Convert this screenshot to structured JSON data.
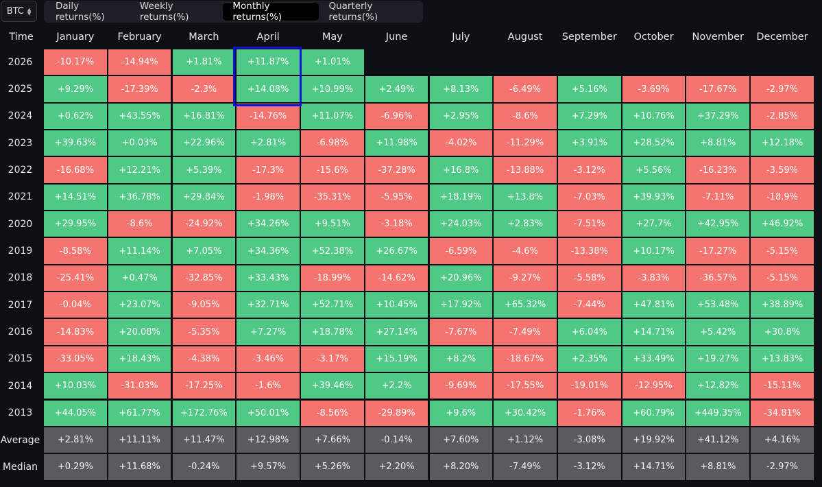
{
  "asset": "BTC",
  "tabs": [
    {
      "label": "Daily returns(%)",
      "active": false
    },
    {
      "label": "Weekly returns(%)",
      "active": false
    },
    {
      "label": "Monthly returns(%)",
      "active": true
    },
    {
      "label": "Quarterly returns(%)",
      "active": false
    }
  ],
  "table": {
    "corner": "Time",
    "months": [
      "January",
      "February",
      "March",
      "April",
      "May",
      "June",
      "July",
      "August",
      "September",
      "October",
      "November",
      "December"
    ],
    "rows": [
      {
        "label": "2026",
        "values": [
          "-10.17%",
          "-14.94%",
          "+1.81%",
          "+11.87%",
          "+1.01%",
          "",
          "",
          "",
          "",
          "",
          "",
          ""
        ]
      },
      {
        "label": "2025",
        "values": [
          "+9.29%",
          "-17.39%",
          "-2.3%",
          "+14.08%",
          "+10.99%",
          "+2.49%",
          "+8.13%",
          "-6.49%",
          "+5.16%",
          "-3.69%",
          "-17.67%",
          "-2.97%"
        ]
      },
      {
        "label": "2024",
        "values": [
          "+0.62%",
          "+43.55%",
          "+16.81%",
          "-14.76%",
          "+11.07%",
          "-6.96%",
          "+2.95%",
          "-8.6%",
          "+7.29%",
          "+10.76%",
          "+37.29%",
          "-2.85%"
        ]
      },
      {
        "label": "2023",
        "values": [
          "+39.63%",
          "+0.03%",
          "+22.96%",
          "+2.81%",
          "-6.98%",
          "+11.98%",
          "-4.02%",
          "-11.29%",
          "+3.91%",
          "+28.52%",
          "+8.81%",
          "+12.18%"
        ]
      },
      {
        "label": "2022",
        "values": [
          "-16.68%",
          "+12.21%",
          "+5.39%",
          "-17.3%",
          "-15.6%",
          "-37.28%",
          "+16.8%",
          "-13.88%",
          "-3.12%",
          "+5.56%",
          "-16.23%",
          "-3.59%"
        ]
      },
      {
        "label": "2021",
        "values": [
          "+14.51%",
          "+36.78%",
          "+29.84%",
          "-1.98%",
          "-35.31%",
          "-5.95%",
          "+18.19%",
          "+13.8%",
          "-7.03%",
          "+39.93%",
          "-7.11%",
          "-18.9%"
        ]
      },
      {
        "label": "2020",
        "values": [
          "+29.95%",
          "-8.6%",
          "-24.92%",
          "+34.26%",
          "+9.51%",
          "-3.18%",
          "+24.03%",
          "+2.83%",
          "-7.51%",
          "+27.7%",
          "+42.95%",
          "+46.92%"
        ]
      },
      {
        "label": "2019",
        "values": [
          "-8.58%",
          "+11.14%",
          "+7.05%",
          "+34.36%",
          "+52.38%",
          "+26.67%",
          "-6.59%",
          "-4.6%",
          "-13.38%",
          "+10.17%",
          "-17.27%",
          "-5.15%"
        ]
      },
      {
        "label": "2018",
        "values": [
          "-25.41%",
          "+0.47%",
          "-32.85%",
          "+33.43%",
          "-18.99%",
          "-14.62%",
          "+20.96%",
          "-9.27%",
          "-5.58%",
          "-3.83%",
          "-36.57%",
          "-5.15%"
        ]
      },
      {
        "label": "2017",
        "values": [
          "-0.04%",
          "+23.07%",
          "-9.05%",
          "+32.71%",
          "+52.71%",
          "+10.45%",
          "+17.92%",
          "+65.32%",
          "-7.44%",
          "+47.81%",
          "+53.48%",
          "+38.89%"
        ]
      },
      {
        "label": "2016",
        "values": [
          "-14.83%",
          "+20.08%",
          "-5.35%",
          "+7.27%",
          "+18.78%",
          "+27.14%",
          "-7.67%",
          "-7.49%",
          "+6.04%",
          "+14.71%",
          "+5.42%",
          "+30.8%"
        ]
      },
      {
        "label": "2015",
        "values": [
          "-33.05%",
          "+18.43%",
          "-4.38%",
          "-3.46%",
          "-3.17%",
          "+15.19%",
          "+8.2%",
          "-18.67%",
          "+2.35%",
          "+33.49%",
          "+19.27%",
          "+13.83%"
        ]
      },
      {
        "label": "2014",
        "values": [
          "+10.03%",
          "-31.03%",
          "-17.25%",
          "-1.6%",
          "+39.46%",
          "+2.2%",
          "-9.69%",
          "-17.55%",
          "-19.01%",
          "-12.95%",
          "+12.82%",
          "-15.11%"
        ]
      },
      {
        "label": "2013",
        "values": [
          "+44.05%",
          "+61.77%",
          "+172.76%",
          "+50.01%",
          "-8.56%",
          "-29.89%",
          "+9.6%",
          "+30.42%",
          "-1.76%",
          "+60.79%",
          "+449.35%",
          "-34.81%"
        ]
      }
    ],
    "stats": [
      {
        "label": "Average",
        "values": [
          "+2.81%",
          "+11.11%",
          "+11.47%",
          "+12.98%",
          "+7.66%",
          "-0.14%",
          "+7.60%",
          "+1.12%",
          "-3.08%",
          "+19.92%",
          "+41.12%",
          "+4.16%"
        ]
      },
      {
        "label": "Median",
        "values": [
          "+0.29%",
          "+11.68%",
          "-0.24%",
          "+9.57%",
          "+5.26%",
          "+2.20%",
          "+8.20%",
          "-7.49%",
          "-3.12%",
          "+14.71%",
          "+8.81%",
          "-2.97%"
        ]
      }
    ]
  },
  "colors": {
    "positive": "#4fc985",
    "negative": "#f6746f",
    "stat": "#5a5b5f",
    "highlight": "#0a12d8"
  }
}
